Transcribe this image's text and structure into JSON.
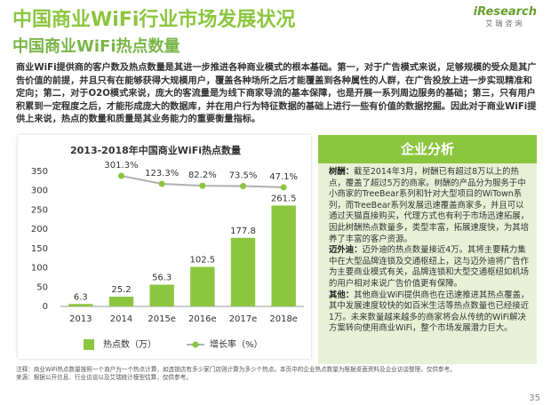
{
  "header": {
    "title": "中国商业WiFi行业市场发展状况",
    "subtitle": "中国商业WiFi热点数量"
  },
  "logo": {
    "name": "iResearch",
    "cn": "艾瑞咨询"
  },
  "intro": "商业WiFi提供商的客户数及热点数量是其进一步推进各种商业模式的根本基础。第一，对于广告模式来说，足够规模的受众是其广告价值的前提，并且只有在能够获得大规模用户，覆盖各种场所之后才能覆盖到各种属性的人群，在广告投放上进一步实现精准和定向；第二，对于O2O模式来说，庞大的客流量是为线下商家导流的基本保障，也是开展一系列周边服务的基础；第三，只有用户积累到一定程度之后，才能形成庞大的数据库，并在用户行为特征数据的基础上进行一些有价值的数据挖掘。因此对于商业WiFi提供上来说，热点的数量和质量是其业务能力的重要衡量指标。",
  "chart_data": {
    "type": "bar",
    "title": "2013-2018年中国商业WiFi热点数量",
    "categories": [
      "2013",
      "2014",
      "2015e",
      "2016e",
      "2017e",
      "2018e"
    ],
    "series": [
      {
        "name": "热点数（万）",
        "color": "#8cc63f",
        "values": [
          6.3,
          25.2,
          56.3,
          102.5,
          177.8,
          261.5
        ]
      },
      {
        "name": "增长率（%）",
        "type": "line",
        "axis": "y2",
        "color": "#b0b0b0",
        "marker_color": "#8cc63f",
        "values": [
          null,
          301.3,
          123.3,
          82.2,
          73.5,
          47.1
        ],
        "value_labels": [
          null,
          "301.3%",
          "123.3%",
          "82.2%",
          "73.5%",
          "47.1%"
        ]
      }
    ],
    "ylim": [
      0,
      350
    ],
    "yticks": [
      0,
      50,
      100,
      150,
      200,
      250,
      300,
      350
    ],
    "y2lim": [
      -2600,
      400
    ],
    "grid": false
  },
  "analysis": {
    "title": "企业分析",
    "items": [
      {
        "label": "树酬：",
        "text": "截至2014年3月，树酬已有超过8万以上的热点，覆盖了超过5万的商家。树酬的产品分为服务于中小商家的TreeBear系列和针对大型项目的WiTown系列，而TreeBear系列发展迅速覆盖商家多，并且可以通过天猫直接购买，代理方式也有利于市场迅速拓展，因此树酬热点数量多，类型丰富，拓展速度快，为其培养了丰富的客户资源。"
      },
      {
        "label": "迈外迪：",
        "text": "迈外迪的热点数量接近4万。其将主要精力集中在大型品牌连锁及交通枢纽上，这与迈外迪将广告作为主要商业模式有关，品牌连锁和大型交通枢纽如机场的用户相对来说广告价值更有保障。"
      },
      {
        "label": "其他：",
        "text": "其他商业WiFi提供商也在迅速推进其热点覆盖，其中发展速度较快的如百米生活等热点数量也已经接近1万。未来数量越来越多的商家将会从传统的WiFi解决方案转向使用商业WiFi，整个市场发展潜力巨大。"
      }
    ]
  },
  "footer": {
    "note": "注释：商业WiFi热点数量按照一个商户为一个热点计算，如连锁店有多少家门店则计算为多少个热点。本页中的企业热点数量为根据桌面资料及企业访谈整理，仅供参考。",
    "source": "来源：根据公开信息、行业访谈以及艾瑞统计模型估算，仅供参考。"
  },
  "page_number": "35"
}
